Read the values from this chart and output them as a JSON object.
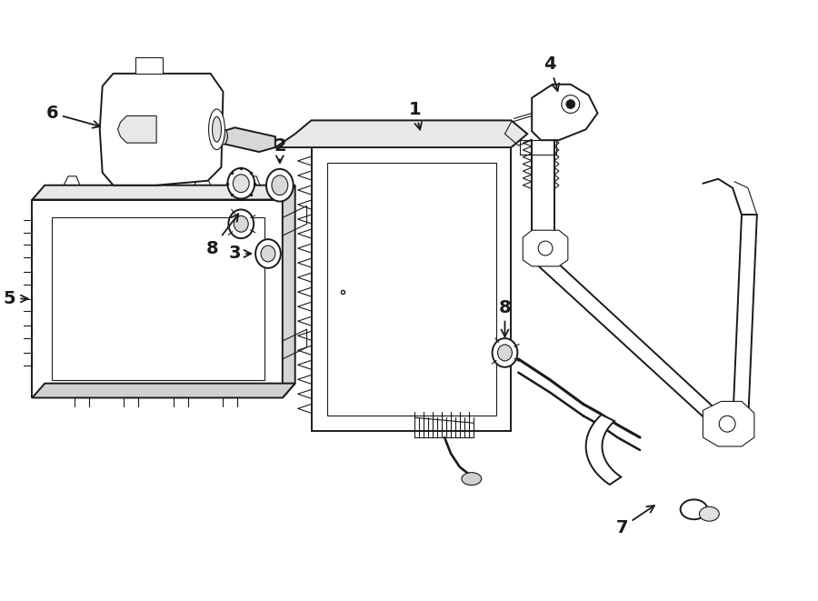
{
  "background_color": "#ffffff",
  "line_color": "#1a1a1a",
  "line_width": 1.4,
  "label_fontsize": 14,
  "fig_width": 9.0,
  "fig_height": 6.61
}
